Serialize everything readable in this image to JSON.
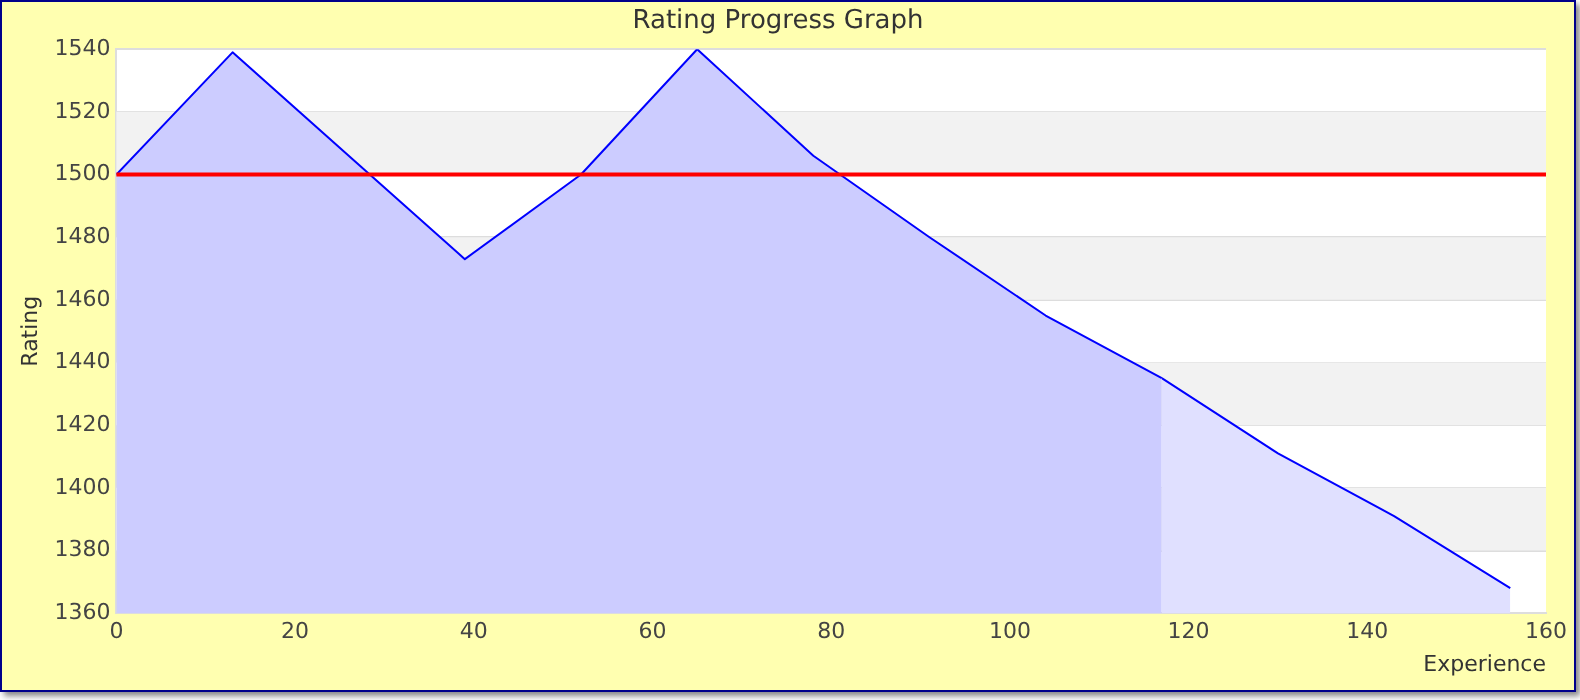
{
  "chart_data": {
    "type": "area",
    "title": "Rating Progress Graph",
    "xlabel": "Experience",
    "ylabel": "Rating",
    "series": [
      {
        "color": "#ccccff",
        "x": [
          0,
          13,
          26,
          39,
          52,
          65,
          78,
          91,
          104,
          117
        ],
        "values": [
          1500,
          1539,
          1506,
          1473,
          1500,
          1540,
          1506,
          1480,
          1455,
          1435
        ]
      },
      {
        "color": "#e0e0ff",
        "x": [
          117,
          130,
          143,
          156
        ],
        "values": [
          1435,
          1411,
          1391,
          1368
        ]
      }
    ],
    "xlim": [
      0,
      160
    ],
    "xticks": [
      0,
      20,
      40,
      60,
      80,
      100,
      120,
      140,
      160
    ],
    "ylim": [
      1360,
      1540
    ],
    "yticks": [
      1360,
      1380,
      1400,
      1420,
      1440,
      1460,
      1480,
      1500,
      1520,
      1540
    ],
    "ref_lines": [
      {
        "axis": "y",
        "value": 1500,
        "color": "#ff0000"
      }
    ],
    "grid": "y",
    "legend": false
  }
}
